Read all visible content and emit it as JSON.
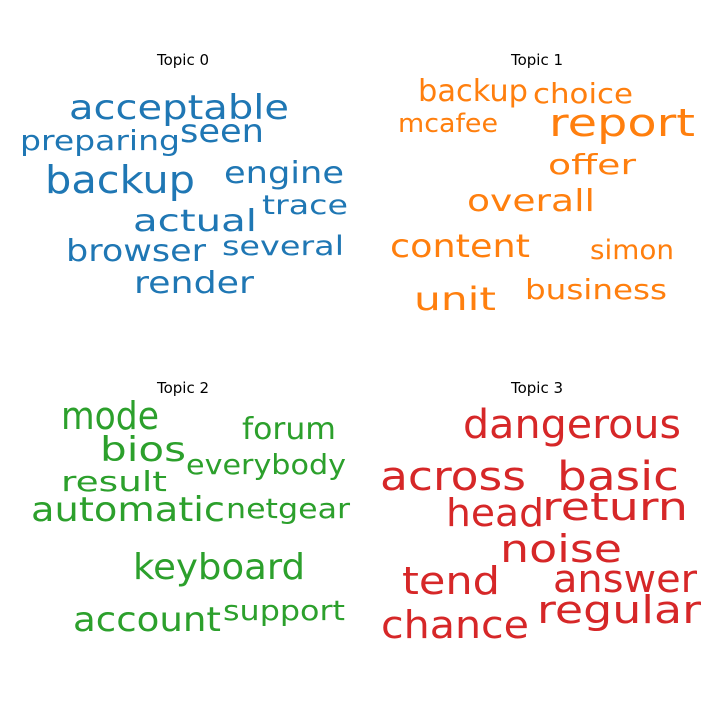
{
  "chart_data": {
    "type": "wordcloud",
    "panels": [
      {
        "title": "Topic 0",
        "color": "#1f77b4",
        "words": [
          "acceptable",
          "seen",
          "preparing",
          "backup",
          "engine",
          "trace",
          "actual",
          "browser",
          "several",
          "render"
        ]
      },
      {
        "title": "Topic 1",
        "color": "#ff7f0e",
        "words": [
          "backup",
          "choice",
          "mcafee",
          "report",
          "offer",
          "overall",
          "content",
          "simon",
          "business",
          "unit"
        ]
      },
      {
        "title": "Topic 2",
        "color": "#2ca02c",
        "words": [
          "mode",
          "forum",
          "bios",
          "everybody",
          "result",
          "automatic",
          "netgear",
          "keyboard",
          "account",
          "support"
        ]
      },
      {
        "title": "Topic 3",
        "color": "#d62728",
        "words": [
          "dangerous",
          "across",
          "basic",
          "head",
          "return",
          "noise",
          "tend",
          "answer",
          "regular",
          "chance"
        ]
      }
    ]
  }
}
